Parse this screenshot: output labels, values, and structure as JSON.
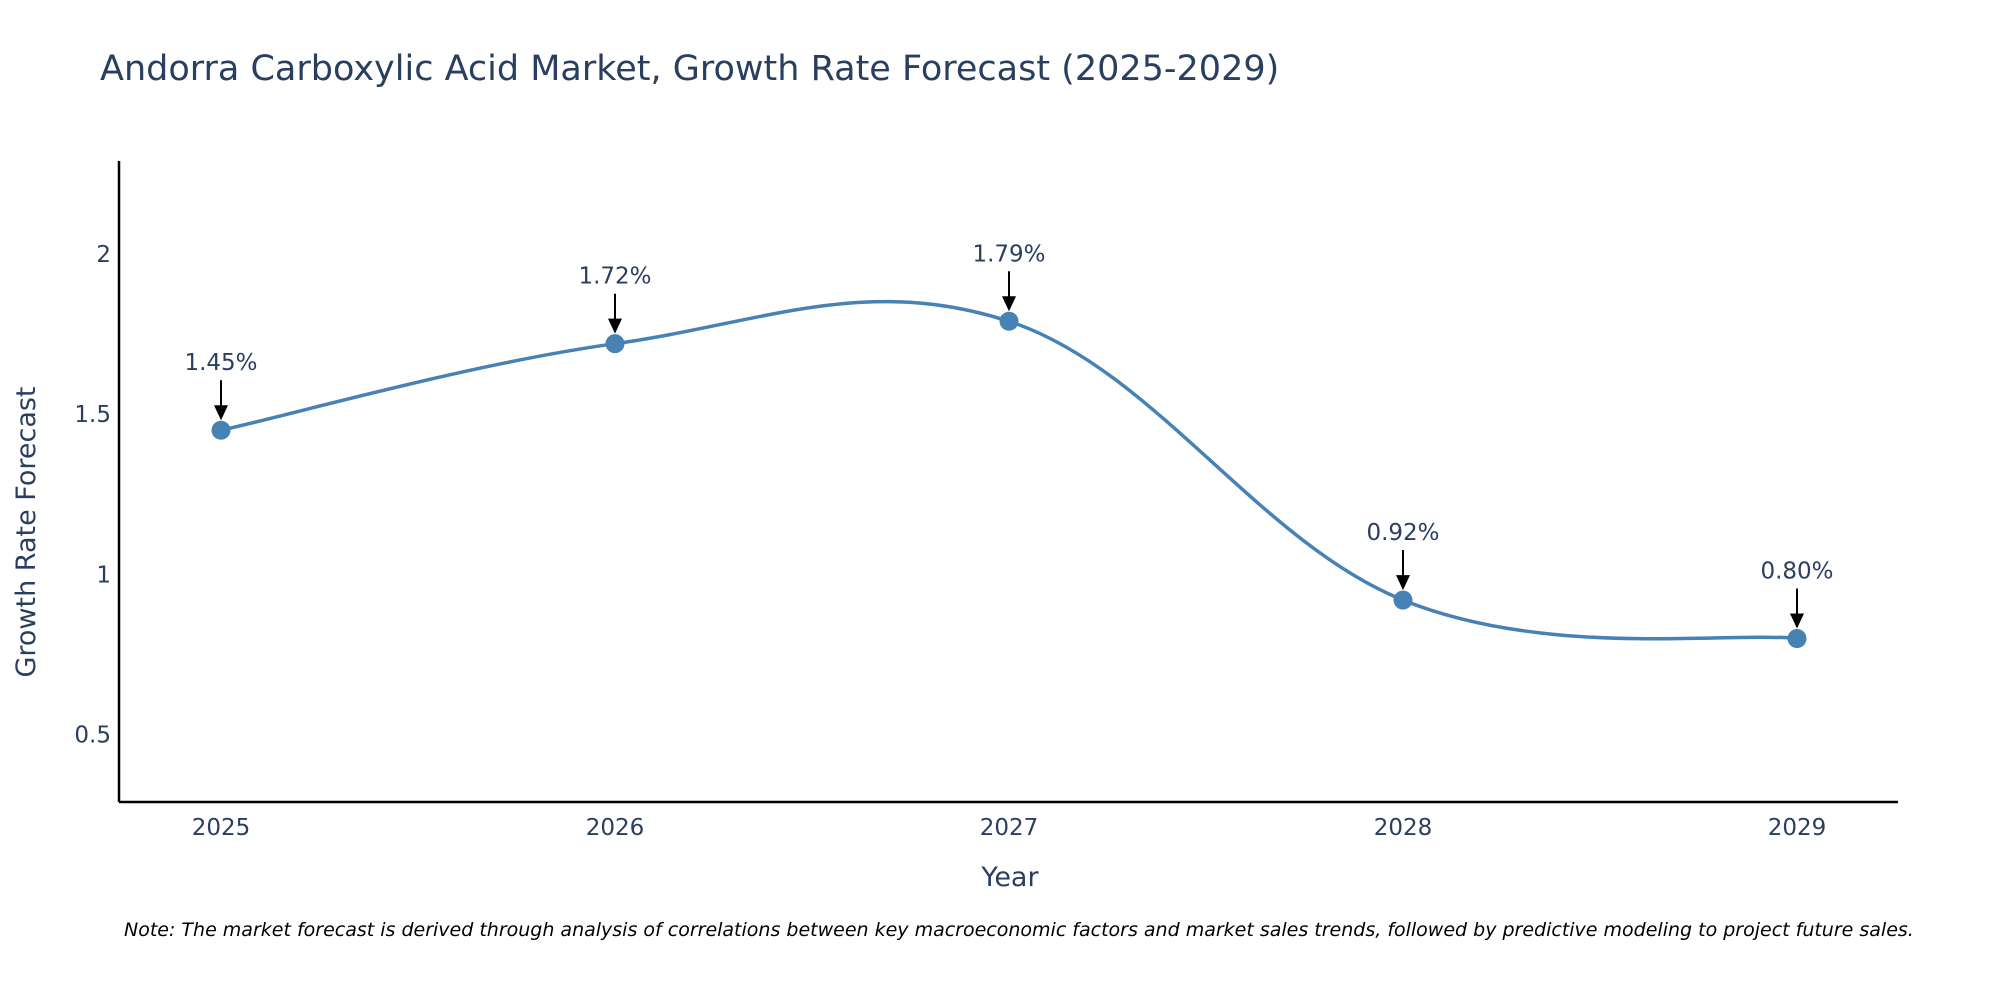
{
  "chart_data": {
    "type": "line",
    "title": "Andorra Carboxylic Acid Market, Growth Rate Forecast (2025-2029)",
    "xlabel": "Year",
    "ylabel": "Growth Rate Forecast",
    "categories": [
      "2025",
      "2026",
      "2027",
      "2028",
      "2029"
    ],
    "values": [
      1.45,
      1.72,
      1.79,
      0.92,
      0.8
    ],
    "data_labels": [
      "1.45%",
      "1.72%",
      "1.79%",
      "0.92%",
      "0.80%"
    ],
    "yticks": [
      0.5,
      1,
      1.5,
      2
    ],
    "ytick_labels": [
      "0.5",
      "1",
      "1.5",
      "2"
    ],
    "ylim": [
      0.29,
      2.29
    ],
    "line_shape": "spline",
    "grid": false,
    "colors": {
      "line": "#4682b4",
      "marker": "#4682b4",
      "arrow": "#000000",
      "title": "#2a3f5f",
      "axis": "#000000",
      "tick_text": "#2a3f5f",
      "label_text": "#2a3f5f"
    }
  },
  "note": "Note: The market forecast is derived through analysis of correlations between key macroeconomic factors and market sales trends, followed by predictive modeling to project future sales."
}
